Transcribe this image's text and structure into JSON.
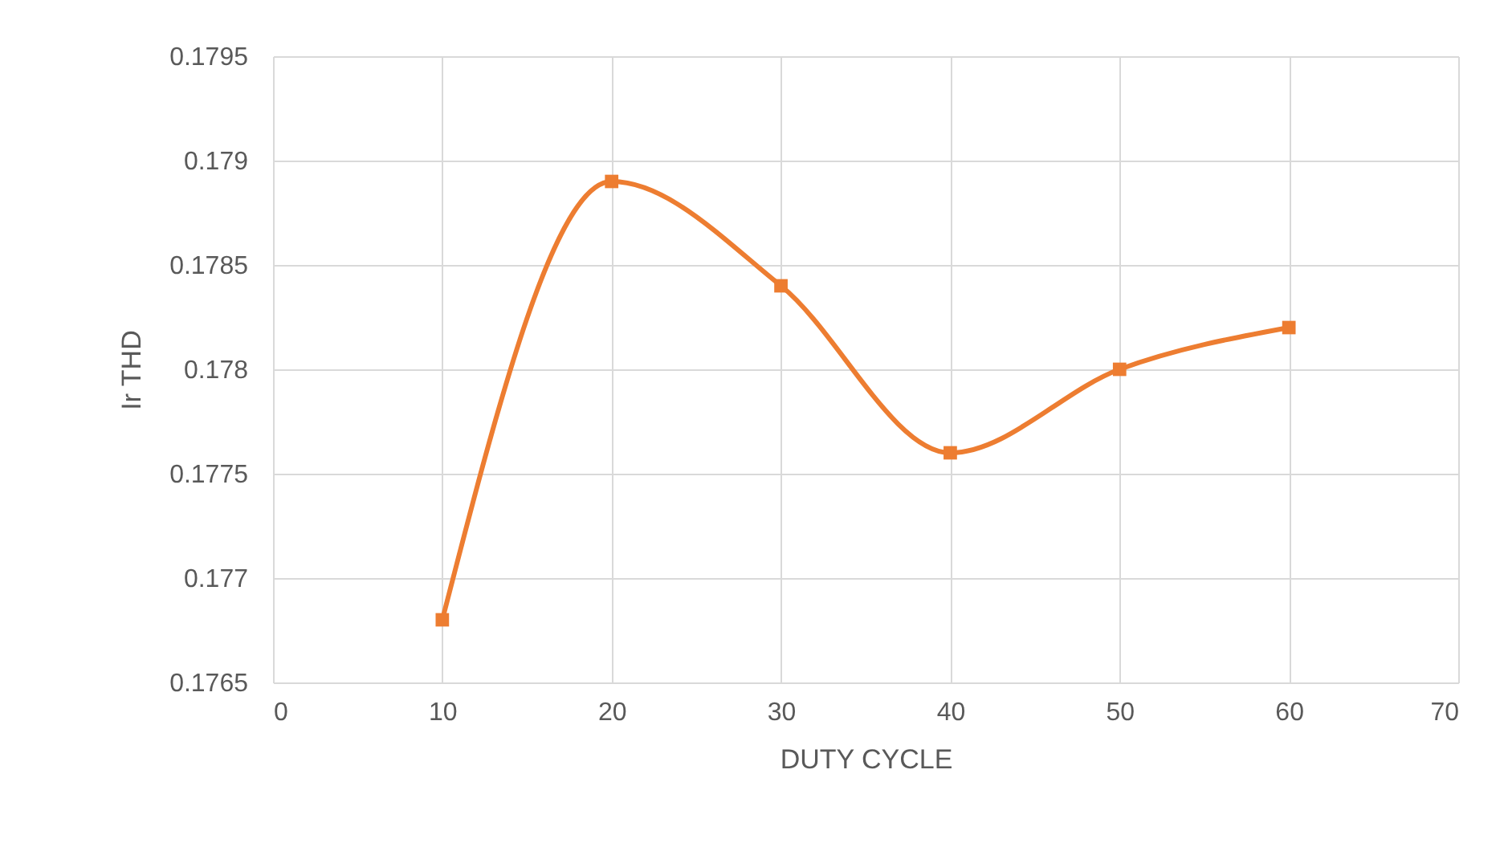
{
  "chart_data": {
    "type": "line",
    "xlabel": "DUTY CYCLE",
    "ylabel": "Ir THD",
    "x": [
      10,
      20,
      30,
      40,
      50,
      60
    ],
    "series": [
      {
        "color": "#ed7d31",
        "values": [
          0.1768,
          0.1789,
          0.1784,
          0.1776,
          0.178,
          0.1782
        ]
      }
    ],
    "xlim": [
      0,
      70
    ],
    "xticks": [
      0,
      10,
      20,
      30,
      40,
      50,
      60,
      70
    ],
    "ylim": [
      0.1765,
      0.1795
    ],
    "yticks": [
      0.1765,
      0.177,
      0.1775,
      0.178,
      0.1785,
      0.179,
      0.1795
    ],
    "grid": true,
    "marker": "square",
    "line_style": "solid"
  }
}
